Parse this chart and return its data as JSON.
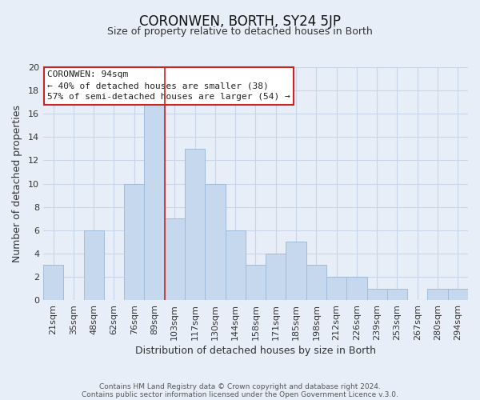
{
  "title": "CORONWEN, BORTH, SY24 5JP",
  "subtitle": "Size of property relative to detached houses in Borth",
  "xlabel": "Distribution of detached houses by size in Borth",
  "ylabel": "Number of detached properties",
  "footer_line1": "Contains HM Land Registry data © Crown copyright and database right 2024.",
  "footer_line2": "Contains public sector information licensed under the Open Government Licence v.3.0.",
  "bin_labels": [
    "21sqm",
    "35sqm",
    "48sqm",
    "62sqm",
    "76sqm",
    "89sqm",
    "103sqm",
    "117sqm",
    "130sqm",
    "144sqm",
    "158sqm",
    "171sqm",
    "185sqm",
    "198sqm",
    "212sqm",
    "226sqm",
    "239sqm",
    "253sqm",
    "267sqm",
    "280sqm",
    "294sqm"
  ],
  "bin_values": [
    3,
    0,
    6,
    0,
    10,
    17,
    7,
    13,
    10,
    6,
    3,
    4,
    5,
    3,
    2,
    2,
    1,
    1,
    0,
    1,
    1
  ],
  "bar_color": "#c5d8ee",
  "bar_edgecolor": "#a0bcd8",
  "bar_width": 1.0,
  "ylim": [
    0,
    20
  ],
  "yticks": [
    0,
    2,
    4,
    6,
    8,
    10,
    12,
    14,
    16,
    18,
    20
  ],
  "grid_color": "#c8d4e8",
  "property_line_x": 5.5,
  "annotation_text": "CORONWEN: 94sqm\n← 40% of detached houses are smaller (38)\n57% of semi-detached houses are larger (54) →",
  "annotation_box_facecolor": "#ffffff",
  "annotation_box_edgecolor": "#cc2222",
  "property_line_color": "#cc2222",
  "background_color": "#e8eef8",
  "title_fontsize": 12,
  "subtitle_fontsize": 9,
  "axis_label_fontsize": 9,
  "tick_fontsize": 8,
  "annotation_fontsize": 8
}
